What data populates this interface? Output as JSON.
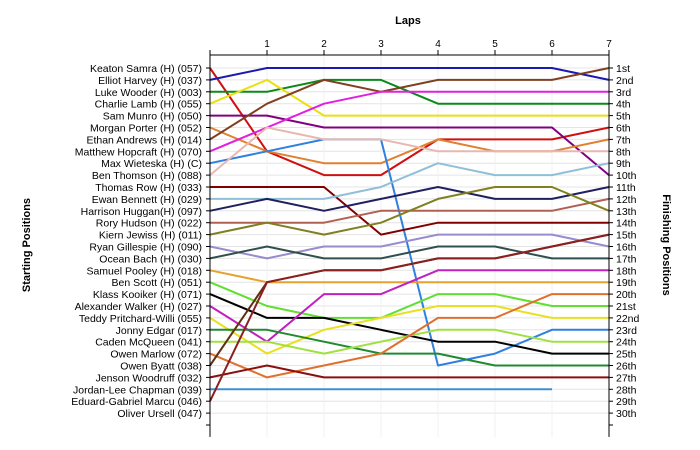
{
  "chart_data": {
    "type": "line",
    "title": "Laps",
    "ylabel_left": "Starting Positions",
    "ylabel_right": "Finishing Positions",
    "x": [
      0,
      1,
      2,
      3,
      4,
      5,
      6,
      7
    ],
    "x_tick_labels": [
      "1",
      "2",
      "3",
      "4",
      "5",
      "6",
      "7"
    ],
    "finish_labels": [
      "1st",
      "2nd",
      "3rd",
      "4th",
      "5th",
      "6th",
      "7th",
      "8th",
      "9th",
      "10th",
      "11th",
      "12th",
      "13th",
      "14th",
      "15th",
      "16th",
      "17th",
      "18th",
      "19th",
      "20th",
      "21st",
      "22nd",
      "23rd",
      "24th",
      "25th",
      "26th",
      "27th",
      "28th",
      "29th",
      "30th"
    ],
    "ylim": [
      1,
      30
    ],
    "grid": true,
    "series": [
      {
        "name": "Keaton Samra (H) (057)",
        "color": "#d01010",
        "values": [
          1,
          8,
          10,
          10,
          7,
          7,
          7,
          6
        ]
      },
      {
        "name": "Elliot Harvey (H) (037)",
        "color": "#1a1ab0",
        "values": [
          2,
          1,
          1,
          1,
          1,
          1,
          1,
          2
        ]
      },
      {
        "name": "Luke Wooder (H) (003)",
        "color": "#0a8a1a",
        "values": [
          3,
          3,
          2,
          2,
          4,
          4,
          4,
          4
        ]
      },
      {
        "name": "Charlie Lamb (H) (055)",
        "color": "#e8e010",
        "values": [
          4,
          2,
          5,
          5,
          5,
          5,
          5,
          5
        ]
      },
      {
        "name": "Sam Munro (H) (050)",
        "color": "#800080",
        "values": [
          5,
          5,
          6,
          6,
          6,
          6,
          6,
          10
        ]
      },
      {
        "name": "Morgan Porter (H) (052)",
        "color": "#e08030",
        "values": [
          6,
          8,
          9,
          9,
          7,
          8,
          8,
          7
        ]
      },
      {
        "name": "Ethan Andrews (H) (014)",
        "color": "#804020",
        "values": [
          7,
          4,
          2,
          3,
          2,
          2,
          2,
          1
        ]
      },
      {
        "name": "Matthew Hopcraft (H) (070)",
        "color": "#e020e0",
        "values": [
          8,
          6,
          4,
          3,
          3,
          3,
          3,
          3
        ]
      },
      {
        "name": "Max Wieteska (H) (C)",
        "color": "#3080e0",
        "values": [
          9,
          8,
          7,
          7,
          26,
          25,
          23,
          23
        ]
      },
      {
        "name": "Ben Thomson (H) (088)",
        "color": "#e8b8b0",
        "values": [
          10,
          6,
          7,
          7,
          8,
          8,
          8,
          8
        ]
      },
      {
        "name": "Thomas Row (H) (033)",
        "color": "#800000",
        "values": [
          11,
          11,
          11,
          15,
          14,
          14,
          14,
          14
        ]
      },
      {
        "name": "Ewan Bennett (H) (029)",
        "color": "#8fc0d8",
        "values": [
          12,
          12,
          12,
          11,
          9,
          10,
          10,
          9
        ]
      },
      {
        "name": "Harrison Huggan(H) (097)",
        "color": "#202060",
        "values": [
          13,
          12,
          13,
          12,
          11,
          12,
          12,
          11
        ]
      },
      {
        "name": "Rory Hudson (H) (022)",
        "color": "#b06050",
        "values": [
          14,
          14,
          14,
          13,
          13,
          13,
          13,
          12
        ]
      },
      {
        "name": "Kiern Jewiss (H) (011)",
        "color": "#808020",
        "values": [
          15,
          14,
          15,
          14,
          12,
          11,
          11,
          13
        ]
      },
      {
        "name": "Ryan Gillespie (H) (090)",
        "color": "#9a8ad0",
        "values": [
          16,
          17,
          16,
          16,
          15,
          15,
          15,
          16
        ]
      },
      {
        "name": "Ocean Bach (H) (030)",
        "color": "#305050",
        "values": [
          17,
          16,
          17,
          17,
          16,
          16,
          17,
          17
        ]
      },
      {
        "name": "Samuel Pooley (H) (018)",
        "color": "#e8a030",
        "values": [
          18,
          19,
          19,
          19,
          19,
          19,
          19,
          19
        ]
      },
      {
        "name": "Ben Scott (H) (051)",
        "color": "#60e030",
        "values": [
          19,
          21,
          22,
          22,
          20,
          20,
          21,
          21
        ]
      },
      {
        "name": "Klass Kooiker (H) (071)",
        "color": "#000000",
        "values": [
          20,
          22,
          22,
          23,
          24,
          24,
          25,
          25
        ]
      },
      {
        "name": "Alexander Walker (H) (027)",
        "color": "#c020c0",
        "values": [
          21,
          24,
          20,
          20,
          18,
          18,
          18,
          18
        ]
      },
      {
        "name": "Teddy Pritchard-Willi (055)",
        "color": "#e8e020",
        "values": [
          22,
          25,
          23,
          22,
          21,
          21,
          22,
          22
        ]
      },
      {
        "name": "Jonny Edgar (017)",
        "color": "#208a30",
        "values": [
          23,
          23,
          24,
          25,
          25,
          26,
          26,
          26
        ]
      },
      {
        "name": "Caden McQueen (041)",
        "color": "#a0e040",
        "values": [
          24,
          24,
          25,
          24,
          23,
          23,
          24,
          24
        ]
      },
      {
        "name": "Owen Marlow (072)",
        "color": "#e07030",
        "values": [
          25,
          27,
          26,
          25,
          22,
          22,
          20,
          20
        ]
      },
      {
        "name": "Owen Byatt (038)",
        "color": "#603010",
        "values": [
          26,
          19,
          18,
          18,
          17,
          17,
          16,
          15
        ]
      },
      {
        "name": "Jenson Woodruff (032)",
        "color": "#8a1010",
        "values": [
          27,
          26,
          27,
          27,
          27,
          27,
          27,
          27
        ]
      },
      {
        "name": "Jordan-Lee Chapman (039)",
        "color": "#4090d0",
        "values": [
          28,
          28,
          28,
          28,
          28,
          28,
          28,
          null
        ]
      },
      {
        "name": "Eduard-Gabriel Marcu (046)",
        "color": "#8a2020",
        "values": [
          29,
          19,
          18,
          18,
          17,
          17,
          16,
          15
        ]
      },
      {
        "name": "Oliver Ursell (047)",
        "color": "#b0b0b0",
        "values": [
          30,
          null,
          null,
          null,
          null,
          null,
          null,
          null
        ]
      }
    ]
  }
}
